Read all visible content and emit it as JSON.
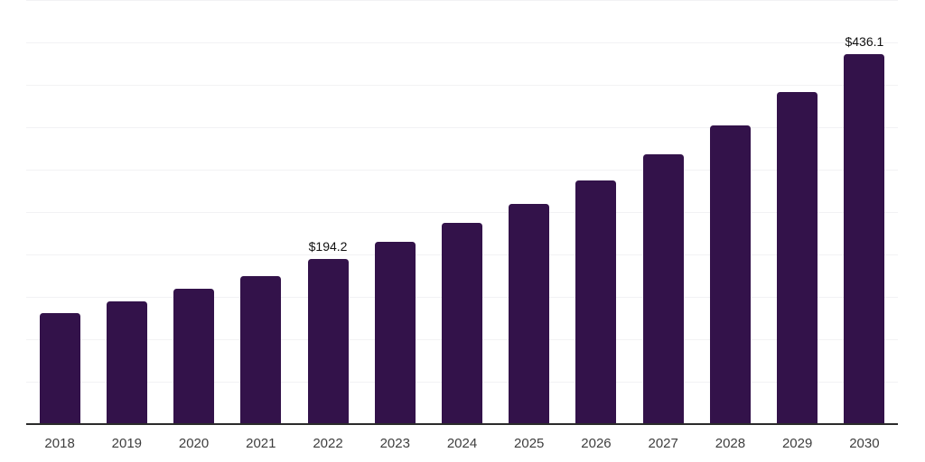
{
  "chart_data": {
    "type": "bar",
    "categories": [
      "2018",
      "2019",
      "2020",
      "2021",
      "2022",
      "2023",
      "2024",
      "2025",
      "2026",
      "2027",
      "2028",
      "2029",
      "2030"
    ],
    "values": [
      131,
      145,
      160,
      175,
      194.2,
      215,
      237,
      260,
      287,
      318,
      352,
      391,
      436.1
    ],
    "bar_labels": [
      "",
      "",
      "",
      "",
      "$194.2",
      "",
      "",
      "",
      "",
      "",
      "",
      "",
      "$436.1"
    ],
    "xlabel": "",
    "ylabel": "",
    "ylim": [
      0,
      500
    ],
    "gridline_step": 50,
    "grid": true,
    "y_tick_labels_visible": false,
    "legend_position": "none",
    "colors": {
      "bar": "#33124a",
      "axis_line": "#2b2b2b",
      "gridline": "#f2f2f4",
      "tick_label": "#3e3e3e",
      "data_label": "#111111",
      "background": "#ffffff"
    }
  }
}
